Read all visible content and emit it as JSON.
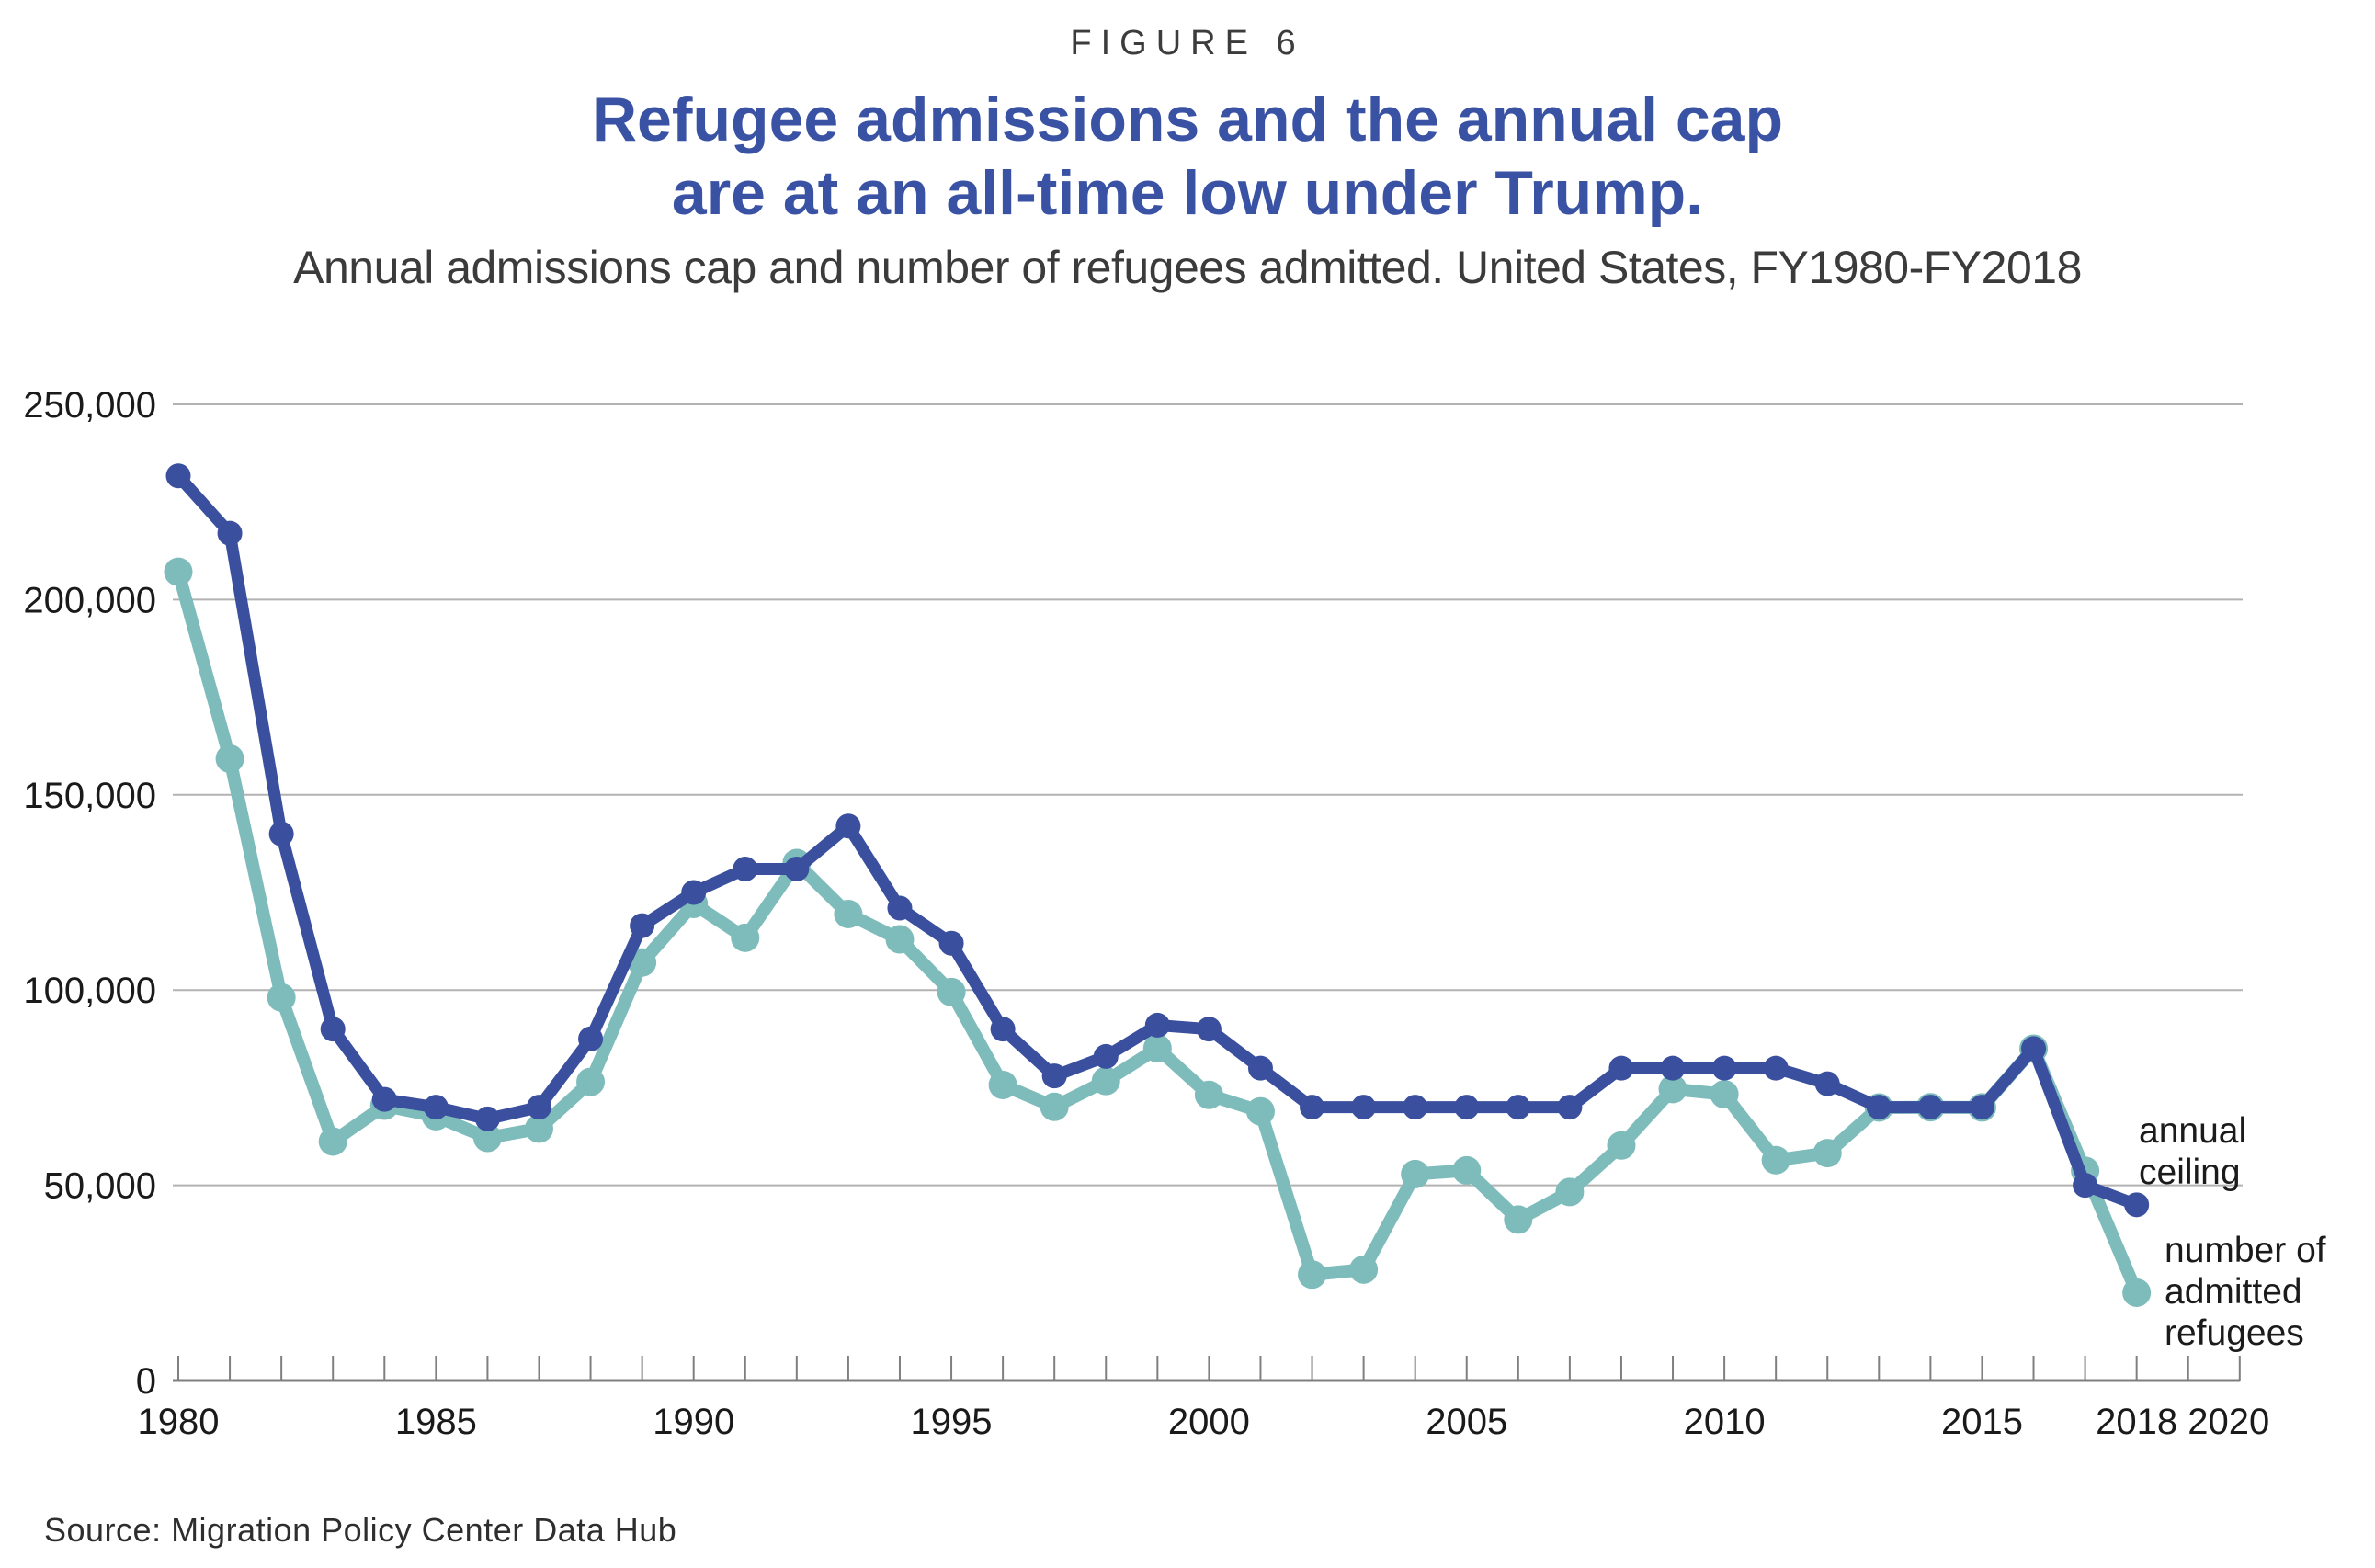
{
  "figure_label": "FIGURE 6",
  "title": "Refugee admissions and the annual cap\nare at an all-time low under Trump.",
  "subtitle": "Annual admissions cap and number of refugees admitted. United States, FY1980-FY2018",
  "source": "Source: Migration Policy Center Data Hub",
  "annotations": {
    "ceiling_label": "annual\nceiling",
    "admitted_label": "number of\nadmitted\nrefugees"
  },
  "colors": {
    "title_blue": "#3a52a4",
    "ceiling_line": "#3a4f9e",
    "admitted_line": "#7ebcbb",
    "gridline": "#b2b2b2",
    "axis": "#7f7f7f",
    "tick_text": "#1a1a1a"
  },
  "chart_data": {
    "type": "line",
    "x": [
      1980,
      1981,
      1982,
      1983,
      1984,
      1985,
      1986,
      1987,
      1988,
      1989,
      1990,
      1991,
      1992,
      1993,
      1994,
      1995,
      1996,
      1997,
      1998,
      1999,
      2000,
      2001,
      2002,
      2003,
      2004,
      2005,
      2006,
      2007,
      2008,
      2009,
      2010,
      2011,
      2012,
      2013,
      2014,
      2015,
      2016,
      2017,
      2018
    ],
    "series": [
      {
        "name": "number of admitted refugees",
        "color": "#7ebcbb",
        "values": [
          207116,
          159252,
          98096,
          61218,
          70393,
          67704,
          62146,
          64528,
          76483,
          107070,
          122066,
          113389,
          132531,
          119482,
          112981,
          99490,
          75693,
          70085,
          76712,
          85076,
          73147,
          68925,
          27131,
          28403,
          52873,
          53813,
          41223,
          48282,
          60191,
          74654,
          73311,
          56424,
          58238,
          69926,
          69987,
          69933,
          84994,
          53716,
          22491
        ]
      },
      {
        "name": "annual ceiling",
        "color": "#3a4f9e",
        "values": [
          231700,
          217000,
          140000,
          90000,
          72000,
          70000,
          67000,
          70000,
          87500,
          116500,
          125000,
          131000,
          131000,
          142000,
          121000,
          112000,
          90000,
          78000,
          83000,
          91000,
          90000,
          80000,
          70000,
          70000,
          70000,
          70000,
          70000,
          70000,
          80000,
          80000,
          80000,
          80000,
          76000,
          70000,
          70000,
          70000,
          85000,
          50000,
          45000
        ]
      }
    ],
    "title": "Refugee admissions and the annual cap are at an all-time low under Trump.",
    "xlabel": "",
    "ylabel": "",
    "xlim": [
      1980,
      2020
    ],
    "ylim": [
      0,
      250000
    ],
    "grid": "horizontal",
    "legend_position": "right-of-last-points",
    "x_tick_labels": [
      "1980",
      "1985",
      "1990",
      "1995",
      "2000",
      "2005",
      "2010",
      "2015",
      "2018",
      "2020"
    ],
    "x_tick_label_years": [
      1980,
      1985,
      1990,
      1995,
      2000,
      2005,
      2010,
      2015,
      2018,
      2020
    ],
    "y_tick_labels": [
      "0",
      "50,000",
      "100,000",
      "150,000",
      "200,000",
      "250,000"
    ],
    "y_tick_values": [
      0,
      50000,
      100000,
      150000,
      200000,
      250000
    ]
  }
}
